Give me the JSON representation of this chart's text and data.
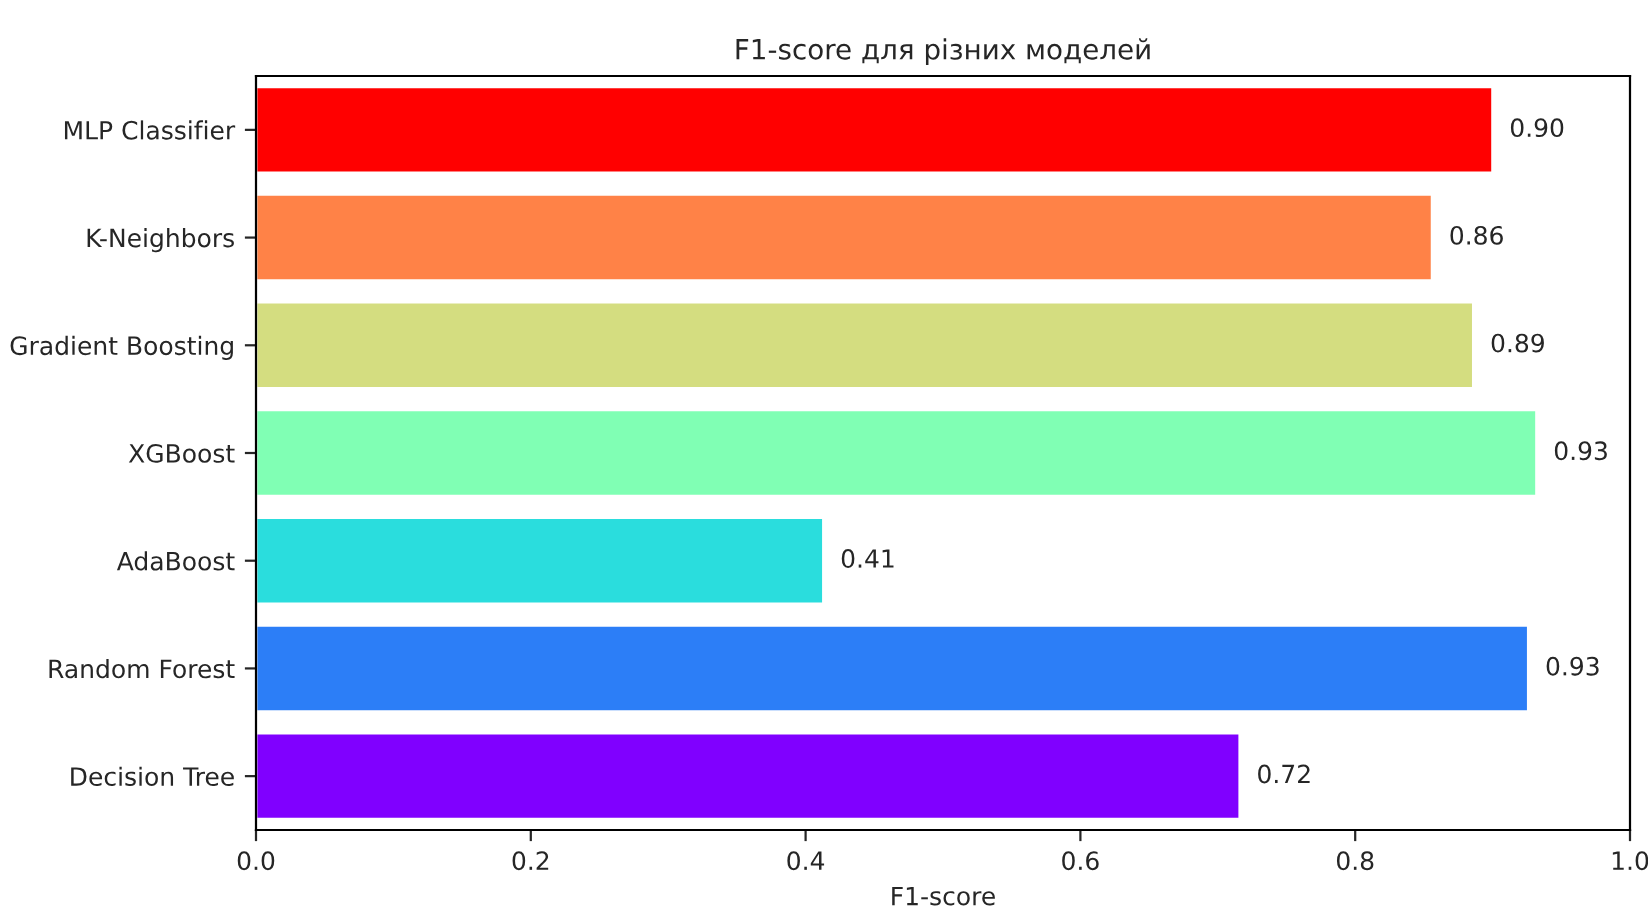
{
  "chart_data": {
    "type": "bar",
    "orientation": "horizontal",
    "title": "F1-score для різних моделей",
    "xlabel": "F1-score",
    "categories": [
      "MLP Classifier",
      "K-Neighbors",
      "Gradient Boosting",
      "XGBoost",
      "AdaBoost",
      "Random Forest",
      "Decision Tree"
    ],
    "values": [
      0.9,
      0.856,
      0.886,
      0.932,
      0.413,
      0.926,
      0.716
    ],
    "value_labels": [
      "0.90",
      "0.86",
      "0.89",
      "0.93",
      "0.41",
      "0.93",
      "0.72"
    ],
    "colors": [
      "#ff0000",
      "#ff8247",
      "#d4dd80",
      "#80ffb4",
      "#2adddd",
      "#2c7ef7",
      "#8000ff"
    ],
    "xlim": [
      0,
      1
    ],
    "xticks": [
      {
        "value": 0,
        "label": "0.0"
      },
      0.2,
      0.4,
      0.6,
      0.8,
      {
        "value": 1,
        "label": "1.0"
      }
    ],
    "grid": false,
    "legend": false
  }
}
